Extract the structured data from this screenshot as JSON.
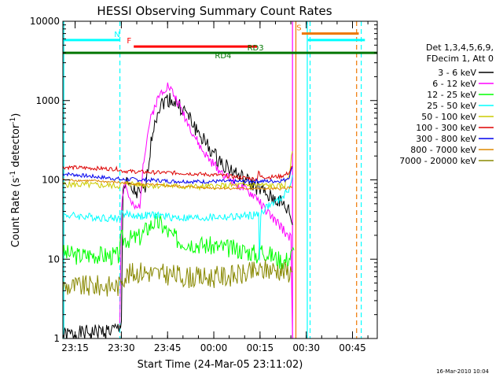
{
  "chart_data": {
    "type": "line",
    "title": "HESSI Observing Summary Count Rates",
    "xlabel": "Start Time (24-Mar-05 23:11:02)",
    "ylabel_main": "Count Rate (s",
    "ylabel_sup1": "-1",
    "ylabel_mid": " detector",
    "ylabel_sup2": "-1",
    "ylabel_end": ")",
    "y_scale": "log",
    "ylim": [
      1,
      10000
    ],
    "x_unit": "minutes since 23:11:02",
    "xlim": [
      0,
      102
    ],
    "x_ticks": [
      {
        "label": "23:15",
        "x": 3.97
      },
      {
        "label": "23:30",
        "x": 18.97
      },
      {
        "label": "23:45",
        "x": 33.97
      },
      {
        "label": "00:00",
        "x": 48.97
      },
      {
        "label": "00:15",
        "x": 63.97
      },
      {
        "label": "00:30",
        "x": 78.97
      },
      {
        "label": "00:45",
        "x": 93.97
      }
    ],
    "y_ticks": [
      {
        "label": "1",
        "y": 1
      },
      {
        "label": "10",
        "y": 10
      },
      {
        "label": "100",
        "y": 100
      },
      {
        "label": "1000",
        "y": 1000
      },
      {
        "label": "10000",
        "y": 10000
      }
    ],
    "legend": {
      "position": "right",
      "header": [
        "Det 1,3,4,5,6,9,",
        "FDecim 1, Att 0"
      ]
    },
    "series": [
      {
        "name": "3 - 6 keV",
        "color": "#000000",
        "points": [
          [
            0,
            1.1
          ],
          [
            18.5,
            1.3
          ],
          [
            19,
            1.9
          ],
          [
            19.5,
            80
          ],
          [
            21,
            88
          ],
          [
            22,
            75
          ],
          [
            24,
            68
          ],
          [
            25,
            64
          ],
          [
            27,
            80
          ],
          [
            28,
            200
          ],
          [
            29.5,
            500
          ],
          [
            31,
            800
          ],
          [
            33,
            1000
          ],
          [
            35,
            1050
          ],
          [
            37,
            900
          ],
          [
            40,
            700
          ],
          [
            43,
            450
          ],
          [
            46,
            300
          ],
          [
            50,
            185
          ],
          [
            54,
            140
          ],
          [
            58,
            105
          ],
          [
            62,
            85
          ],
          [
            64,
            75
          ],
          [
            67,
            60
          ],
          [
            70,
            55
          ],
          [
            72,
            45
          ],
          [
            73.5,
            40
          ],
          [
            74.5,
            27
          ]
        ],
        "noise": 0.1,
        "seed": 1
      },
      {
        "name": "6 - 12 keV",
        "color": "#ff00ff",
        "points": [
          [
            18.5,
            1.6
          ],
          [
            19,
            45
          ],
          [
            20,
            95
          ],
          [
            21,
            70
          ],
          [
            22,
            50
          ],
          [
            23,
            45
          ],
          [
            24,
            42
          ],
          [
            25,
            48
          ],
          [
            26,
            160
          ],
          [
            28,
            500
          ],
          [
            30,
            900
          ],
          [
            32,
            1300
          ],
          [
            34,
            1550
          ],
          [
            35,
            1400
          ],
          [
            37,
            1000
          ],
          [
            39,
            700
          ],
          [
            42,
            400
          ],
          [
            45,
            240
          ],
          [
            48,
            170
          ],
          [
            52,
            120
          ],
          [
            56,
            90
          ],
          [
            60,
            70
          ],
          [
            63,
            60
          ],
          [
            65,
            45
          ],
          [
            68,
            33
          ],
          [
            71,
            25
          ],
          [
            74,
            18
          ],
          [
            74.5,
            1
          ]
        ],
        "noise": 0.06,
        "seed": 2
      },
      {
        "name": "12 - 25 keV",
        "color": "#00ff00",
        "points": [
          [
            0,
            12
          ],
          [
            5,
            11
          ],
          [
            10,
            11.5
          ],
          [
            15,
            11
          ],
          [
            18,
            11
          ],
          [
            19,
            18
          ],
          [
            22,
            18
          ],
          [
            25,
            19
          ],
          [
            28,
            26
          ],
          [
            30,
            30
          ],
          [
            32,
            27
          ],
          [
            35,
            20
          ],
          [
            38,
            17
          ],
          [
            42,
            16
          ],
          [
            46,
            15
          ],
          [
            52,
            14
          ],
          [
            58,
            13
          ],
          [
            62,
            12
          ],
          [
            63.5,
            11
          ],
          [
            64,
            14
          ],
          [
            66,
            12
          ],
          [
            70,
            10
          ],
          [
            72,
            9.5
          ],
          [
            74,
            11
          ],
          [
            75,
            13
          ]
        ],
        "noise": 0.12,
        "seed": 3
      },
      {
        "name": "25 - 50 keV",
        "color": "#00ffff",
        "points": [
          [
            0,
            36
          ],
          [
            5,
            35
          ],
          [
            10,
            34
          ],
          [
            15,
            33
          ],
          [
            18.5,
            33
          ],
          [
            19,
            38
          ],
          [
            22,
            36
          ],
          [
            25,
            35
          ],
          [
            30,
            36
          ],
          [
            35,
            34
          ],
          [
            40,
            33
          ],
          [
            45,
            33
          ],
          [
            50,
            34
          ],
          [
            55,
            34
          ],
          [
            60,
            35
          ],
          [
            62,
            36
          ],
          [
            63.5,
            36
          ],
          [
            63.8,
            10
          ],
          [
            64.2,
            38
          ],
          [
            66,
            45
          ],
          [
            68,
            50
          ],
          [
            70,
            55
          ],
          [
            72,
            65
          ],
          [
            73.5,
            80
          ],
          [
            74.5,
            115
          ]
        ],
        "noise": 0.05,
        "seed": 4
      },
      {
        "name": "50 - 100 keV",
        "color": "#cccc00",
        "points": [
          [
            0,
            88
          ],
          [
            10,
            86
          ],
          [
            18,
            84
          ],
          [
            19,
            88
          ],
          [
            22,
            90
          ],
          [
            25,
            87
          ],
          [
            30,
            85
          ],
          [
            35,
            84
          ],
          [
            40,
            82
          ],
          [
            45,
            82
          ],
          [
            50,
            83
          ],
          [
            55,
            85
          ],
          [
            60,
            86
          ],
          [
            64,
            86
          ],
          [
            66,
            85
          ],
          [
            70,
            82
          ],
          [
            72,
            86
          ],
          [
            73.5,
            120
          ],
          [
            74.5,
            230
          ]
        ],
        "noise": 0.04,
        "seed": 5
      },
      {
        "name": "100 - 300 keV",
        "color": "#dd0000",
        "points": [
          [
            0,
            145
          ],
          [
            10,
            140
          ],
          [
            18,
            137
          ],
          [
            19,
            130
          ],
          [
            22,
            128
          ],
          [
            25,
            126
          ],
          [
            30,
            124
          ],
          [
            35,
            123
          ],
          [
            40,
            121
          ],
          [
            45,
            118
          ],
          [
            50,
            115
          ],
          [
            55,
            110
          ],
          [
            60,
            105
          ],
          [
            63,
            102
          ],
          [
            63.5,
            130
          ],
          [
            64,
            110
          ],
          [
            66,
            108
          ],
          [
            70,
            110
          ],
          [
            72,
            115
          ],
          [
            73.5,
            125
          ],
          [
            74.5,
            150
          ]
        ],
        "noise": 0.025,
        "seed": 6
      },
      {
        "name": "300 - 800 keV",
        "color": "#0000ee",
        "points": [
          [
            0,
            120
          ],
          [
            10,
            110
          ],
          [
            18,
            103
          ],
          [
            19,
            100
          ],
          [
            22,
            102
          ],
          [
            25,
            100
          ],
          [
            30,
            99
          ],
          [
            35,
            96
          ],
          [
            40,
            96
          ],
          [
            45,
            95
          ],
          [
            50,
            96
          ],
          [
            55,
            95
          ],
          [
            60,
            96
          ],
          [
            64,
            97
          ],
          [
            66,
            96
          ],
          [
            70,
            97
          ],
          [
            72,
            100
          ],
          [
            73.5,
            110
          ],
          [
            74.5,
            145
          ]
        ],
        "noise": 0.025,
        "seed": 7
      },
      {
        "name": "800 - 7000 keV",
        "color": "#dd8800",
        "points": [
          [
            0,
            100
          ],
          [
            10,
            97
          ],
          [
            18,
            93
          ],
          [
            19,
            92
          ],
          [
            22,
            90
          ],
          [
            25,
            88
          ],
          [
            30,
            86
          ],
          [
            35,
            84
          ],
          [
            40,
            82
          ],
          [
            45,
            80
          ],
          [
            50,
            79
          ],
          [
            55,
            78
          ],
          [
            60,
            78
          ],
          [
            64,
            77
          ],
          [
            66,
            77
          ],
          [
            70,
            77
          ],
          [
            72,
            78
          ],
          [
            73.5,
            80
          ],
          [
            74.5,
            82
          ]
        ],
        "noise": 0.015,
        "seed": 8
      },
      {
        "name": "7000 - 20000 keV",
        "color": "#888800",
        "points": [
          [
            0,
            4.5
          ],
          [
            5,
            4.5
          ],
          [
            10,
            4.6
          ],
          [
            15,
            4.6
          ],
          [
            18.5,
            4.6
          ],
          [
            19,
            6
          ],
          [
            22,
            6.5
          ],
          [
            25,
            7
          ],
          [
            28,
            6.8
          ],
          [
            30,
            6.5
          ],
          [
            35,
            6.4
          ],
          [
            40,
            6
          ],
          [
            45,
            5.8
          ],
          [
            50,
            6
          ],
          [
            55,
            6.2
          ],
          [
            60,
            6.5
          ],
          [
            62,
            7
          ],
          [
            64,
            7
          ],
          [
            66,
            7.5
          ],
          [
            70,
            7.4
          ],
          [
            72,
            7
          ],
          [
            74.5,
            7
          ]
        ],
        "noise": 0.14,
        "seed": 9
      }
    ],
    "flag_lines": [
      {
        "label": "N",
        "color": "#00ffff",
        "level": 5800,
        "x": [
          0,
          18.5
        ],
        "label_x": 17.6
      },
      {
        "label": "F",
        "color": "#ff0000",
        "level": 4800,
        "x": [
          23,
          63
        ],
        "label_x": 21.5
      },
      {
        "label": "S",
        "color": "#ee7700",
        "level": 7000,
        "x": [
          77.5,
          96
        ],
        "label_x": 76.6
      },
      {
        "label": "",
        "color": "#00ffff",
        "level": 5800,
        "x": [
          79.5,
          98
        ],
        "label_x": null
      },
      {
        "label": "",
        "color": "#007700",
        "level": 4000,
        "x": [
          0,
          102
        ],
        "label_x": null
      }
    ],
    "annotations": [
      {
        "text": "RD4",
        "color": "#007700",
        "x": 52,
        "y": 3400
      },
      {
        "text": "RD3",
        "color": "#007700",
        "x": 62.5,
        "y": 4300
      }
    ],
    "vertical_lines": [
      {
        "x": 0.3,
        "color": "#00ffff",
        "style": "solid"
      },
      {
        "x": 18.5,
        "color": "#00ffff",
        "style": "dashed"
      },
      {
        "x": 74.5,
        "color": "#ff00ff",
        "style": "solid"
      },
      {
        "x": 75.6,
        "color": "#ee7700",
        "style": "solid"
      },
      {
        "x": 79.3,
        "color": "#00ffff",
        "style": "solid"
      },
      {
        "x": 80.2,
        "color": "#00ffff",
        "style": "dashed"
      },
      {
        "x": 95.3,
        "color": "#ee7700",
        "style": "dashed"
      },
      {
        "x": 96.8,
        "color": "#00ffff",
        "style": "dashed"
      }
    ],
    "grid": false
  },
  "footer_timestamp": "16-Mar-2010 10:04"
}
